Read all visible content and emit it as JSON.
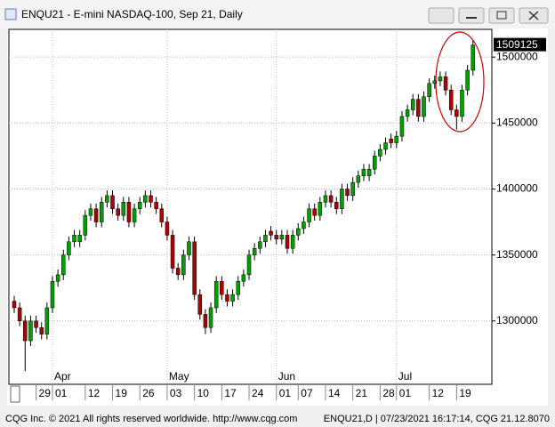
{
  "chart_data": {
    "type": "candlestick",
    "title": "ENQU21 - E-mini NASDAQ-100, Sep 21, Daily",
    "categories": [
      null,
      null,
      null,
      null,
      "29",
      null,
      null,
      "01",
      null,
      null,
      null,
      null,
      null,
      "12",
      null,
      null,
      null,
      null,
      "19",
      null,
      null,
      null,
      null,
      "26",
      null,
      null,
      null,
      null,
      "03",
      null,
      null,
      null,
      null,
      "10",
      null,
      null,
      null,
      null,
      "17",
      null,
      null,
      null,
      null,
      "24",
      null,
      null,
      null,
      null,
      "01",
      null,
      null,
      null,
      "07",
      null,
      null,
      null,
      null,
      "14",
      null,
      null,
      null,
      null,
      "21",
      null,
      null,
      null,
      null,
      "28",
      null,
      null,
      "01",
      null,
      null,
      null,
      null,
      null,
      "12",
      null,
      null,
      null,
      null,
      "19",
      null,
      null,
      null
    ],
    "months": [
      null,
      null,
      null,
      null,
      null,
      null,
      null,
      "Apr",
      null,
      null,
      null,
      null,
      null,
      null,
      null,
      null,
      null,
      null,
      null,
      null,
      null,
      null,
      null,
      null,
      null,
      null,
      null,
      null,
      "May",
      null,
      null,
      null,
      null,
      null,
      null,
      null,
      null,
      null,
      null,
      null,
      null,
      null,
      null,
      null,
      null,
      null,
      null,
      null,
      "Jun",
      null,
      null,
      null,
      null,
      null,
      null,
      null,
      null,
      null,
      null,
      null,
      null,
      null,
      null,
      null,
      null,
      null,
      null,
      null,
      null,
      null,
      "Jul",
      null,
      null,
      null,
      null,
      null,
      null,
      null,
      null,
      null,
      null,
      null,
      null,
      null,
      null
    ],
    "open": [
      1315000,
      1310000,
      1300000,
      1285000,
      1300000,
      1295000,
      1290000,
      1310000,
      1330000,
      1335000,
      1350000,
      1360000,
      1360000,
      1365000,
      1380000,
      1385000,
      1375000,
      1390000,
      1395000,
      1385000,
      1380000,
      1390000,
      1375000,
      1385000,
      1390000,
      1395000,
      1390000,
      1385000,
      1375000,
      1365000,
      1340000,
      1335000,
      1350000,
      1360000,
      1320000,
      1305000,
      1295000,
      1310000,
      1330000,
      1320000,
      1315000,
      1320000,
      1330000,
      1335000,
      1350000,
      1355000,
      1360000,
      1368000,
      1365000,
      1362000,
      1365000,
      1355000,
      1365000,
      1370000,
      1375000,
      1385000,
      1380000,
      1390000,
      1395000,
      1390000,
      1385000,
      1400000,
      1395000,
      1405000,
      1410000,
      1410000,
      1415000,
      1425000,
      1430000,
      1438000,
      1435000,
      1440000,
      1455000,
      1460000,
      1468000,
      1455000,
      1470000,
      1480000,
      1482000,
      1485000,
      1475000,
      1460000,
      1455000,
      1475000,
      1490000
    ],
    "high": [
      1319000,
      1314000,
      1304000,
      1304000,
      1304000,
      1299000,
      1314000,
      1334000,
      1339000,
      1354000,
      1364000,
      1369000,
      1369000,
      1384000,
      1389000,
      1389000,
      1394000,
      1399000,
      1399000,
      1389000,
      1394000,
      1394000,
      1389000,
      1394000,
      1399000,
      1399000,
      1394000,
      1389000,
      1379000,
      1369000,
      1344000,
      1354000,
      1364000,
      1364000,
      1324000,
      1309000,
      1314000,
      1334000,
      1334000,
      1324000,
      1324000,
      1334000,
      1339000,
      1354000,
      1359000,
      1364000,
      1369000,
      1372000,
      1369000,
      1369000,
      1369000,
      1369000,
      1374000,
      1379000,
      1389000,
      1389000,
      1394000,
      1399000,
      1399000,
      1394000,
      1404000,
      1404000,
      1409000,
      1414000,
      1419000,
      1419000,
      1429000,
      1434000,
      1439000,
      1442000,
      1444000,
      1459000,
      1464000,
      1472000,
      1472000,
      1474000,
      1484000,
      1486000,
      1489000,
      1489000,
      1479000,
      1464000,
      1479000,
      1494000,
      1513000
    ],
    "low": [
      1306000,
      1296000,
      1262000,
      1281000,
      1291000,
      1286000,
      1286000,
      1306000,
      1326000,
      1331000,
      1346000,
      1356000,
      1356000,
      1361000,
      1376000,
      1371000,
      1371000,
      1386000,
      1381000,
      1376000,
      1376000,
      1371000,
      1371000,
      1381000,
      1386000,
      1386000,
      1381000,
      1371000,
      1361000,
      1336000,
      1331000,
      1331000,
      1346000,
      1316000,
      1301000,
      1290000,
      1291000,
      1306000,
      1316000,
      1311000,
      1311000,
      1316000,
      1326000,
      1331000,
      1346000,
      1351000,
      1356000,
      1361000,
      1358000,
      1358000,
      1351000,
      1351000,
      1361000,
      1366000,
      1371000,
      1376000,
      1376000,
      1386000,
      1386000,
      1381000,
      1381000,
      1391000,
      1391000,
      1401000,
      1406000,
      1406000,
      1411000,
      1421000,
      1426000,
      1431000,
      1431000,
      1436000,
      1451000,
      1456000,
      1451000,
      1451000,
      1466000,
      1476000,
      1478000,
      1471000,
      1456000,
      1445000,
      1451000,
      1471000,
      1486000
    ],
    "close": [
      1310000,
      1300000,
      1285000,
      1300000,
      1295000,
      1290000,
      1310000,
      1330000,
      1335000,
      1350000,
      1360000,
      1365000,
      1365000,
      1380000,
      1385000,
      1375000,
      1390000,
      1395000,
      1385000,
      1380000,
      1390000,
      1375000,
      1385000,
      1390000,
      1395000,
      1390000,
      1385000,
      1375000,
      1365000,
      1340000,
      1335000,
      1350000,
      1360000,
      1320000,
      1305000,
      1295000,
      1310000,
      1330000,
      1320000,
      1315000,
      1320000,
      1330000,
      1335000,
      1350000,
      1355000,
      1360000,
      1365000,
      1365000,
      1362000,
      1365000,
      1355000,
      1365000,
      1370000,
      1375000,
      1385000,
      1380000,
      1390000,
      1395000,
      1390000,
      1385000,
      1400000,
      1395000,
      1405000,
      1410000,
      1415000,
      1415000,
      1425000,
      1430000,
      1435000,
      1435000,
      1440000,
      1455000,
      1460000,
      1468000,
      1455000,
      1470000,
      1480000,
      1482000,
      1485000,
      1475000,
      1460000,
      1455000,
      1475000,
      1490000,
      1509125
    ],
    "up_color": "#00a000",
    "down_color": "#b00000",
    "ylim": [
      1252000,
      1521000
    ],
    "yticks": [
      1300000,
      1350000,
      1400000,
      1450000,
      1500000
    ],
    "grid": true
  },
  "footer_left": "CQG Inc. © 2021 All rights reserved worldwide. http://www.cqg.com",
  "footer_right": "ENQU21,D | 07/23/2021 16:17:14, CQG 21.12.8070"
}
